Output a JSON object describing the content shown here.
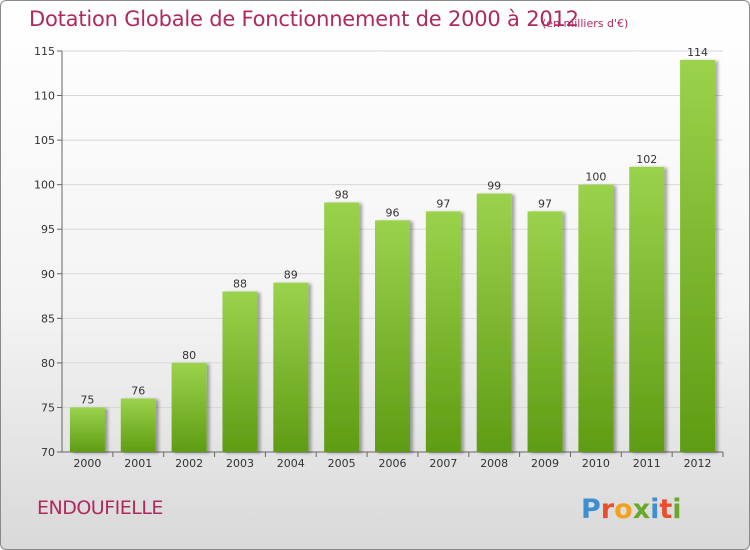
{
  "title": "Dotation Globale de Fonctionnement de 2000 à 2012",
  "unit": "(en milliers d'€)",
  "commune": "ENDOUFIELLE",
  "logo": {
    "text": "Proxiti",
    "letters": [
      "P",
      "r",
      "o",
      "x",
      "i",
      "t",
      "i"
    ]
  },
  "colors": {
    "bar_top": "#9bd24c",
    "bar_bottom": "#5f9c14",
    "title": "#b0295e",
    "grid": "#d8d8d8"
  },
  "chart_data": {
    "type": "bar",
    "categories": [
      "2000",
      "2001",
      "2002",
      "2003",
      "2004",
      "2005",
      "2006",
      "2007",
      "2008",
      "2009",
      "2010",
      "2011",
      "2012"
    ],
    "values": [
      75,
      76,
      80,
      88,
      89,
      98,
      96,
      97,
      99,
      97,
      100,
      102,
      114
    ],
    "data_labels": [
      "75",
      "76",
      "80",
      "88",
      "89",
      "98",
      "96",
      "97",
      "99",
      "97",
      "100",
      "102",
      "114"
    ],
    "ylim": [
      70,
      115
    ],
    "yticks": [
      70,
      75,
      80,
      85,
      90,
      95,
      100,
      105,
      110,
      115
    ],
    "ytick_labels": [
      "70",
      "75",
      "80",
      "85",
      "90",
      "95",
      "100",
      "105",
      "110",
      "115"
    ],
    "grid": true
  }
}
